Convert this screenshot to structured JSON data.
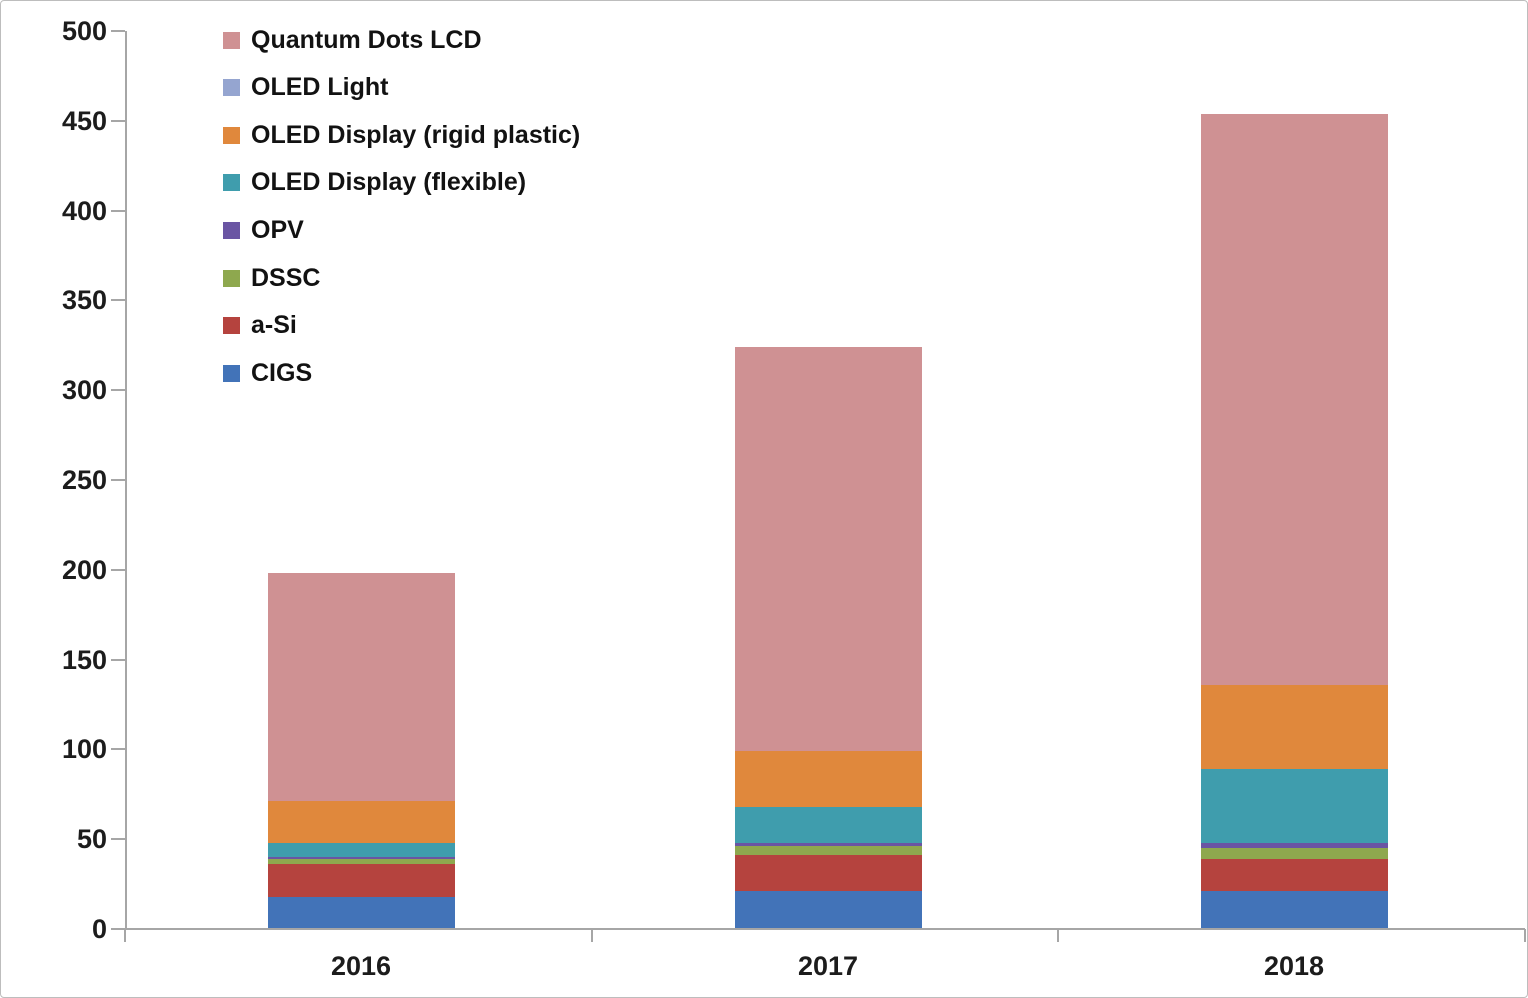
{
  "chart_data": {
    "type": "bar",
    "stacked": true,
    "title": "",
    "xlabel": "",
    "ylabel": "",
    "categories": [
      "2016",
      "2017",
      "2018"
    ],
    "series": [
      {
        "name": "CIGS",
        "color": "#4273b8",
        "values": [
          18,
          21,
          21
        ]
      },
      {
        "name": "a-Si",
        "color": "#b5433e",
        "values": [
          18,
          20,
          18
        ]
      },
      {
        "name": "DSSC",
        "color": "#8ea84e",
        "values": [
          3,
          5,
          6
        ]
      },
      {
        "name": "OPV",
        "color": "#6a55a3",
        "values": [
          1,
          2,
          3
        ]
      },
      {
        "name": "OLED Display (flexible)",
        "color": "#3f9dad",
        "values": [
          8,
          20,
          41
        ]
      },
      {
        "name": "OLED Display (rigid plastic)",
        "color": "#e0883c",
        "values": [
          23,
          31,
          47
        ]
      },
      {
        "name": "OLED Light",
        "color": "#95a5d0",
        "values": [
          0,
          0,
          0
        ]
      },
      {
        "name": "Quantum Dots LCD",
        "color": "#cf9193",
        "values": [
          127,
          225,
          318
        ]
      }
    ],
    "totals": [
      198,
      324,
      454
    ],
    "ylim": [
      0,
      500
    ],
    "y_tick_step": 50,
    "y_tick_labels": [
      "0",
      "50",
      "100",
      "150",
      "200",
      "250",
      "300",
      "350",
      "400",
      "450",
      "500"
    ],
    "grid": false,
    "legend_position": "top-left",
    "legend_order_top_to_bottom": [
      "Quantum Dots LCD",
      "OLED Light",
      "OLED Display (rigid plastic)",
      "OLED Display (flexible)",
      "OPV",
      "DSSC",
      "a-Si",
      "CIGS"
    ],
    "axis_color": "#a6a6a6",
    "label_color": "#1c1c1c"
  }
}
